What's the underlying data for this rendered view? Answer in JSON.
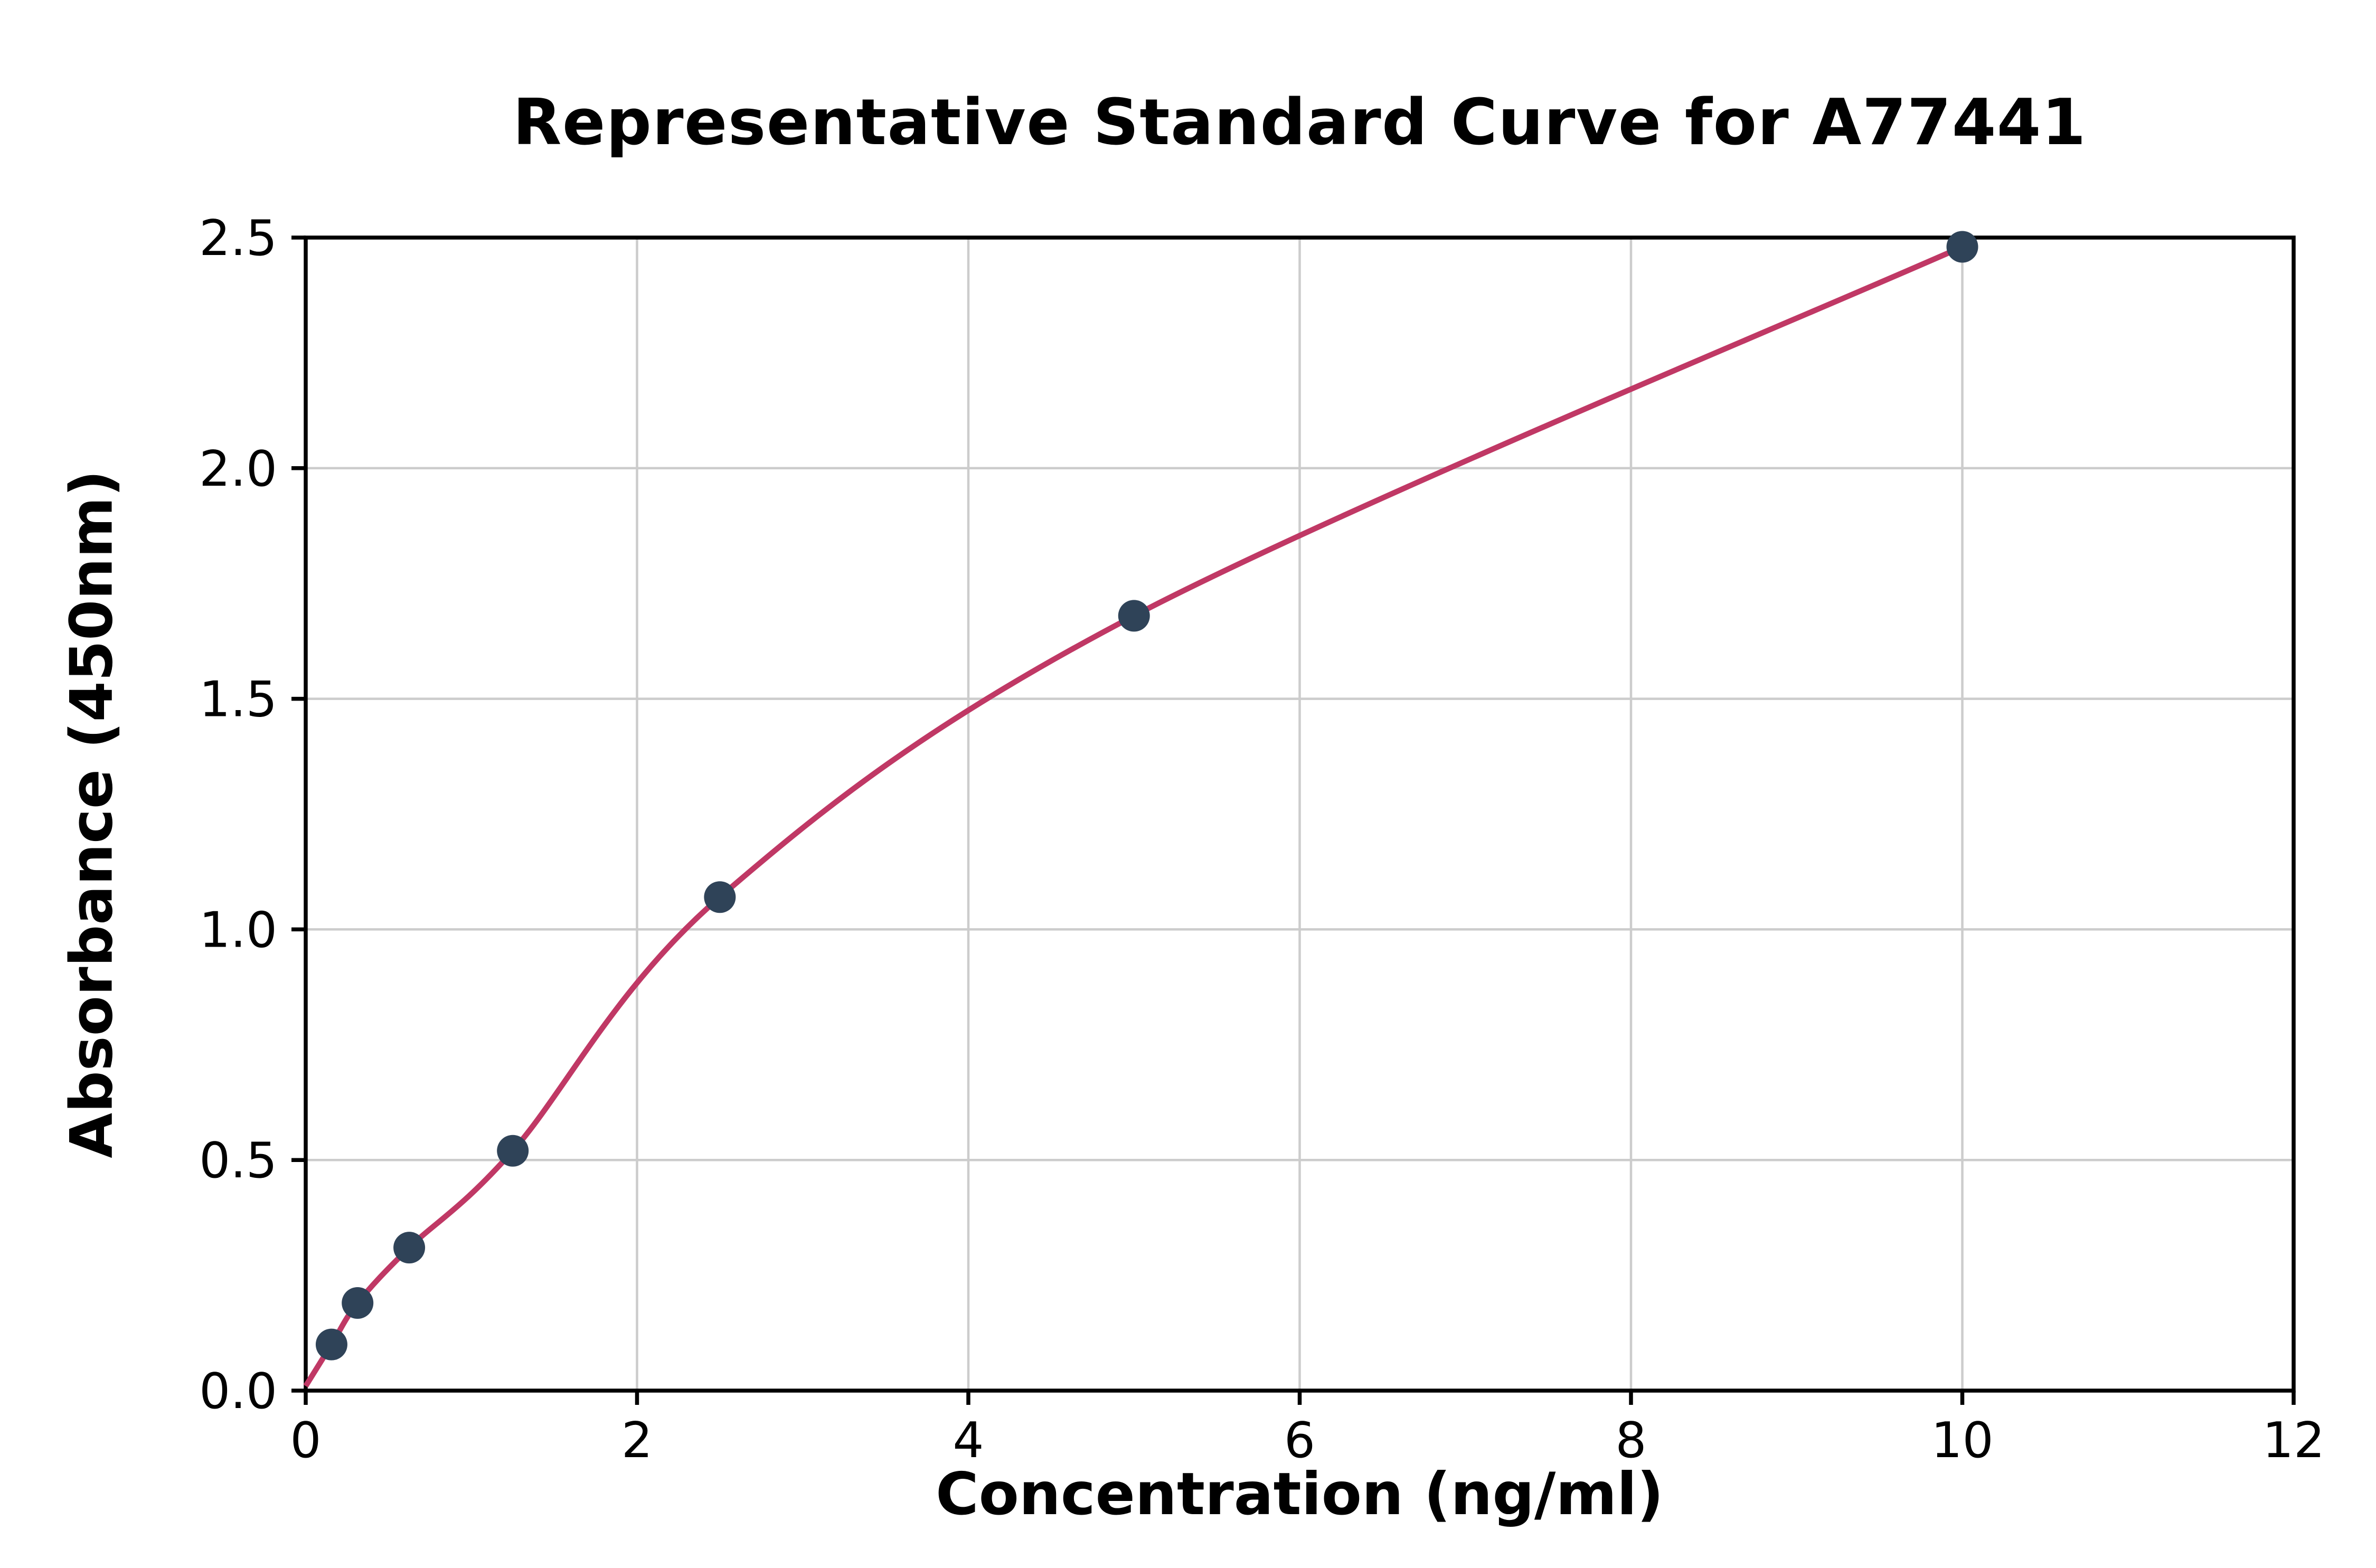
{
  "chart_data": {
    "type": "scatter",
    "title": "Representative Standard Curve for A77441",
    "xlabel": "Concentration (ng/ml)",
    "ylabel": "Absorbance (450nm)",
    "xlim": [
      0,
      12
    ],
    "ylim": [
      0,
      2.5
    ],
    "grid": true,
    "legend": "none",
    "x_ticks": [
      0,
      2,
      4,
      6,
      8,
      10,
      12
    ],
    "x_tick_labels": [
      "0",
      "2",
      "4",
      "6",
      "8",
      "10",
      "12"
    ],
    "y_ticks": [
      0,
      0.5,
      1.0,
      1.5,
      2.0,
      2.5
    ],
    "y_tick_labels": [
      "0.0",
      "0.5",
      "1.0",
      "1.5",
      "2.0",
      "2.5"
    ],
    "points": [
      {
        "x": 0.156,
        "y": 0.1
      },
      {
        "x": 0.313,
        "y": 0.19
      },
      {
        "x": 0.625,
        "y": 0.31
      },
      {
        "x": 1.25,
        "y": 0.52
      },
      {
        "x": 2.5,
        "y": 1.07
      },
      {
        "x": 5.0,
        "y": 1.68
      },
      {
        "x": 10.0,
        "y": 2.48
      }
    ],
    "curve_start": {
      "x": 0.0,
      "y": 0.01
    },
    "colors": {
      "curve": "#c03865",
      "point": "#2f4358",
      "grid": "#cccccc",
      "axis": "#000000",
      "background": "#ffffff"
    }
  }
}
